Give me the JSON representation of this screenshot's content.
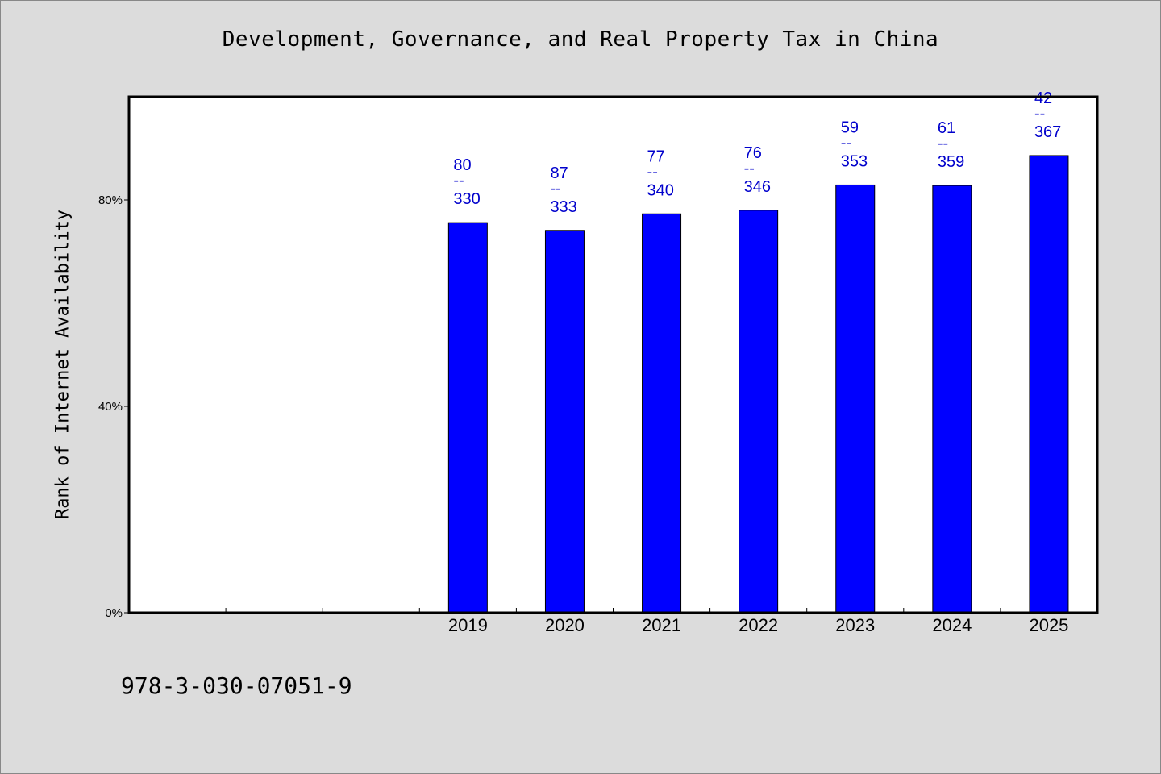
{
  "chart_data": {
    "type": "bar",
    "title": "Development, Governance, and Real Property Tax in China",
    "xlabel": "",
    "ylabel": "Rank of Internet Availability",
    "categories": [
      "",
      "",
      "",
      "2019",
      "2020",
      "2021",
      "2022",
      "2023",
      "2024",
      "2025"
    ],
    "values": [
      null,
      null,
      null,
      75.6,
      74.1,
      77.3,
      78.0,
      82.9,
      82.8,
      88.6
    ],
    "bar_labels": [
      null,
      null,
      null,
      {
        "top": "80",
        "mid": "--",
        "bottom": "330"
      },
      {
        "top": "87",
        "mid": "--",
        "bottom": "333"
      },
      {
        "top": "77",
        "mid": "--",
        "bottom": "340"
      },
      {
        "top": "76",
        "mid": "--",
        "bottom": "346"
      },
      {
        "top": "59",
        "mid": "--",
        "bottom": "353"
      },
      {
        "top": "61",
        "mid": "--",
        "bottom": "359"
      },
      {
        "top": "42",
        "mid": "--",
        "bottom": "367"
      }
    ],
    "ylim": [
      0,
      100
    ],
    "yticks": [
      0,
      40,
      80
    ],
    "ytick_labels": [
      "0%",
      "40%",
      "80%"
    ],
    "bar_color": "#0000ff",
    "label_color": "#0000cc",
    "grid": false,
    "legend": "none"
  },
  "footer": {
    "isbn": "978-3-030-07051-9"
  }
}
